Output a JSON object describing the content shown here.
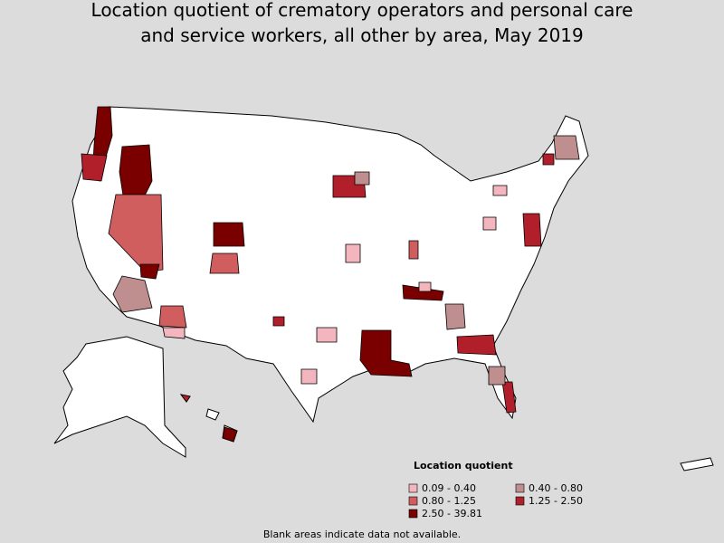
{
  "title": [
    "Location quotient of crematory operators and personal care",
    "and service workers, all other by area, May 2019"
  ],
  "legend": {
    "title": "Location quotient",
    "items": [
      {
        "label": "0.09 - 0.40",
        "color": "#f4b6be"
      },
      {
        "label": "0.40 - 0.80",
        "color": "#bf8f8f"
      },
      {
        "label": "0.80 - 1.25",
        "color": "#d05e5e"
      },
      {
        "label": "1.25 - 2.50",
        "color": "#b01f2a"
      },
      {
        "label": "2.50 - 39.81",
        "color": "#7a0000"
      }
    ]
  },
  "note": "Blank areas indicate data not available."
}
